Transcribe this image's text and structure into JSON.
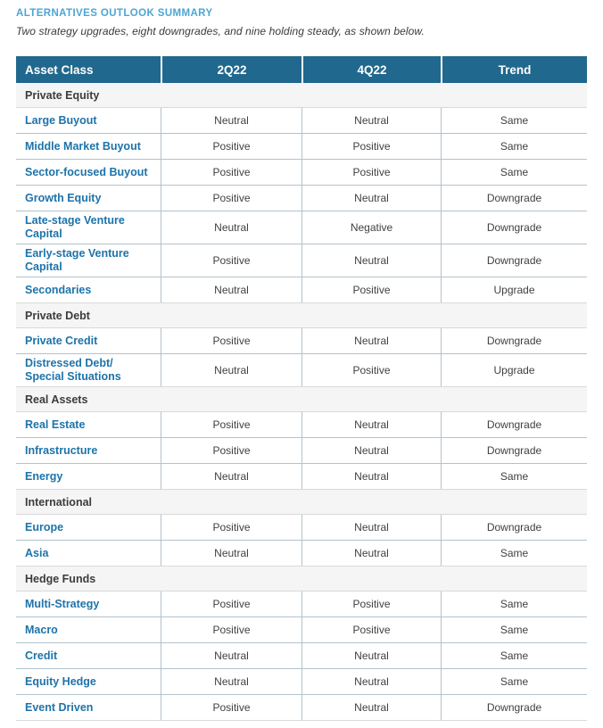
{
  "page": {
    "title": "ALTERNATIVES OUTLOOK SUMMARY",
    "subtitle": "Two strategy upgrades, eight downgrades, and nine holding steady, as shown below."
  },
  "colors": {
    "header_bg": "#20688d",
    "title_blue": "#4ba6d4",
    "asset_blue": "#1d73aa",
    "text_dark": "#414141",
    "section_text": "#3c3c3c",
    "border_blue_gray": "#b3c2cc",
    "border_light": "#d9d9d9",
    "section_bg": "#f5f5f6"
  },
  "table": {
    "columns": [
      "Asset Class",
      "2Q22",
      "4Q22",
      "Trend"
    ],
    "sections": [
      {
        "name": "Private Equity",
        "rows": [
          {
            "asset": "Large Buyout",
            "q2_22": "Neutral",
            "q4_22": "Neutral",
            "trend": "Same"
          },
          {
            "asset": "Middle Market Buyout",
            "q2_22": "Positive",
            "q4_22": "Positive",
            "trend": "Same"
          },
          {
            "asset": "Sector-focused Buyout",
            "q2_22": "Positive",
            "q4_22": "Positive",
            "trend": "Same"
          },
          {
            "asset": "Growth Equity",
            "q2_22": "Positive",
            "q4_22": "Neutral",
            "trend": "Downgrade"
          },
          {
            "asset": "Late-stage Venture Capital",
            "q2_22": "Neutral",
            "q4_22": "Negative",
            "trend": "Downgrade"
          },
          {
            "asset": "Early-stage Venture Capital",
            "q2_22": "Positive",
            "q4_22": "Neutral",
            "trend": "Downgrade"
          },
          {
            "asset": "Secondaries",
            "q2_22": "Neutral",
            "q4_22": "Positive",
            "trend": "Upgrade"
          }
        ]
      },
      {
        "name": "Private Debt",
        "rows": [
          {
            "asset": "Private Credit",
            "q2_22": "Positive",
            "q4_22": "Neutral",
            "trend": "Downgrade"
          },
          {
            "asset": "Distressed Debt/\nSpecial Situations",
            "q2_22": "Neutral",
            "q4_22": "Positive",
            "trend": "Upgrade"
          }
        ]
      },
      {
        "name": "Real Assets",
        "rows": [
          {
            "asset": "Real Estate",
            "q2_22": "Positive",
            "q4_22": "Neutral",
            "trend": "Downgrade"
          },
          {
            "asset": "Infrastructure",
            "q2_22": "Positive",
            "q4_22": "Neutral",
            "trend": "Downgrade"
          },
          {
            "asset": "Energy",
            "q2_22": "Neutral",
            "q4_22": "Neutral",
            "trend": "Same"
          }
        ]
      },
      {
        "name": "International",
        "rows": [
          {
            "asset": "Europe",
            "q2_22": "Positive",
            "q4_22": "Neutral",
            "trend": "Downgrade"
          },
          {
            "asset": "Asia",
            "q2_22": "Neutral",
            "q4_22": "Neutral",
            "trend": "Same"
          }
        ]
      },
      {
        "name": "Hedge Funds",
        "rows": [
          {
            "asset": "Multi-Strategy",
            "q2_22": "Positive",
            "q4_22": "Positive",
            "trend": "Same"
          },
          {
            "asset": "Macro",
            "q2_22": "Positive",
            "q4_22": "Positive",
            "trend": "Same"
          },
          {
            "asset": "Credit",
            "q2_22": "Neutral",
            "q4_22": "Neutral",
            "trend": "Same"
          },
          {
            "asset": "Equity Hedge",
            "q2_22": "Neutral",
            "q4_22": "Neutral",
            "trend": "Same"
          },
          {
            "asset": "Event Driven",
            "q2_22": "Positive",
            "q4_22": "Neutral",
            "trend": "Downgrade"
          }
        ]
      }
    ]
  }
}
